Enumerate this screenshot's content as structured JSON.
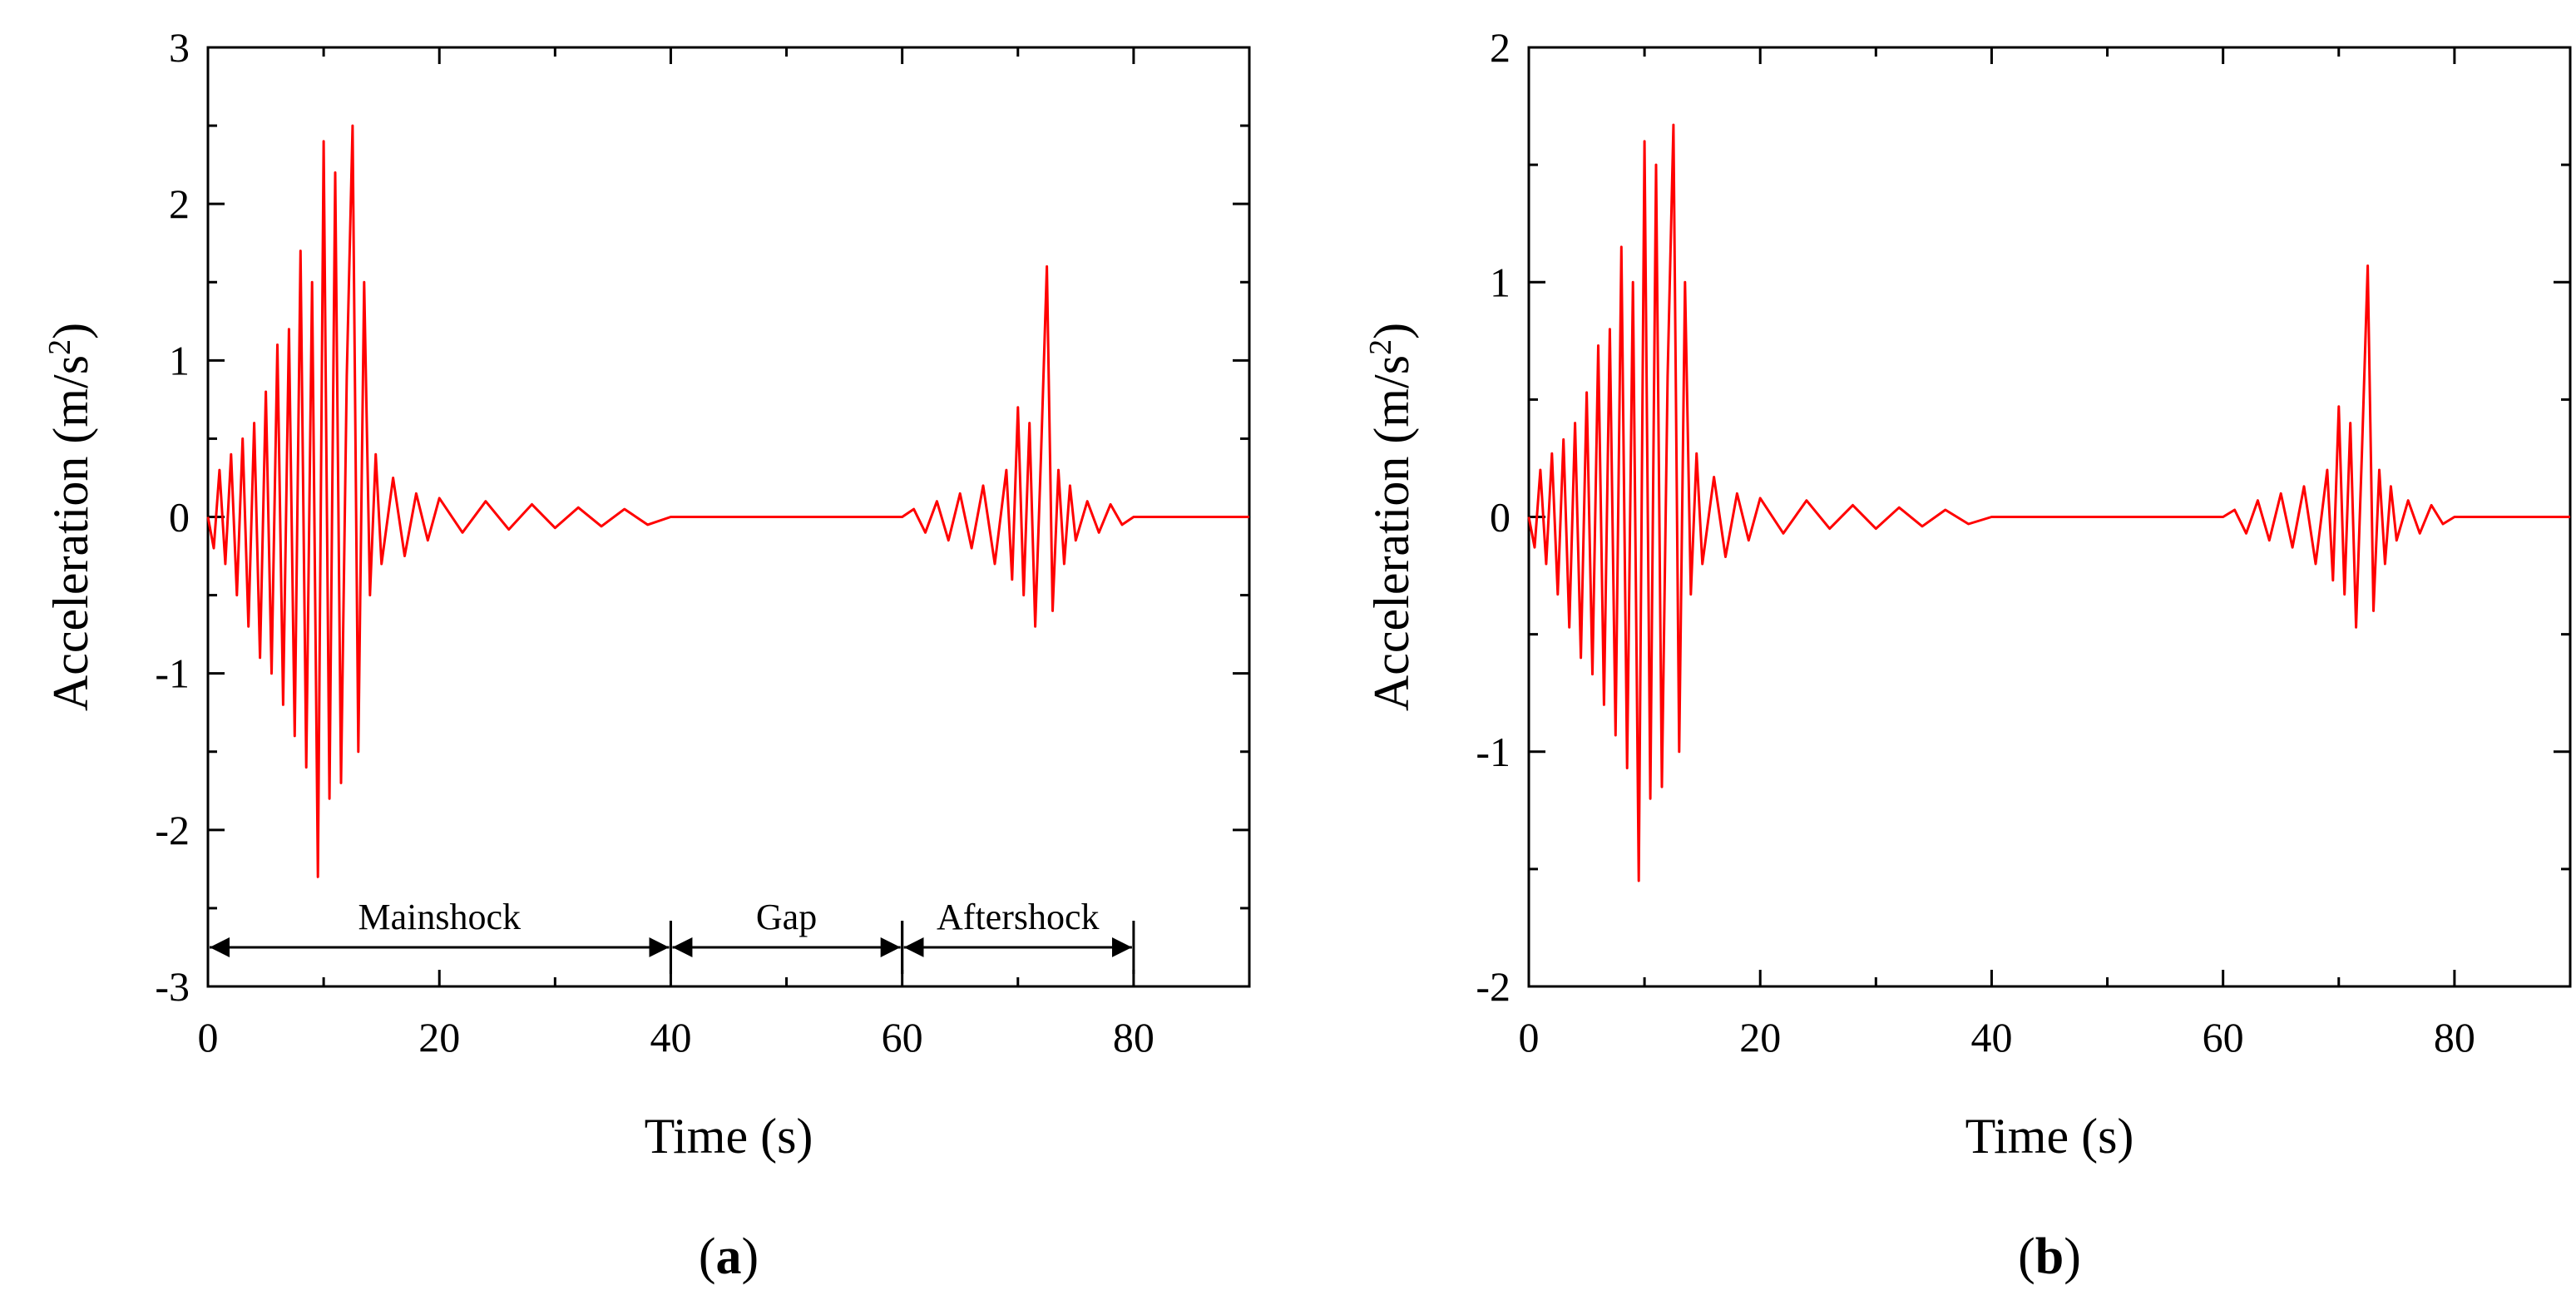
{
  "colors": {
    "signal": "#ff0000",
    "axis": "#000000",
    "background": "#ffffff"
  },
  "chart_data": [
    {
      "type": "line",
      "panel_label": "a",
      "xlabel": "Time (s)",
      "ylabel": "Acceleration (m/s",
      "ylabel_sup": "2",
      "ylabel_close": ")",
      "xlim": [
        0,
        90
      ],
      "ylim": [
        -3,
        3
      ],
      "xticks": [
        0,
        20,
        40,
        60,
        80
      ],
      "yticks": [
        -3,
        -2,
        -1,
        0,
        1,
        2,
        3
      ],
      "grid": false,
      "series": [
        {
          "name": "acceleration",
          "x": [
            0,
            0.5,
            1,
            1.5,
            2,
            2.5,
            3,
            3.5,
            4,
            4.5,
            5,
            5.5,
            6,
            6.5,
            7,
            7.5,
            8,
            8.5,
            9,
            9.5,
            10,
            10.5,
            11,
            11.5,
            12,
            12.5,
            13,
            13.5,
            14,
            14.5,
            15,
            16,
            17,
            18,
            19,
            20,
            22,
            24,
            26,
            28,
            30,
            32,
            34,
            36,
            38,
            40,
            45,
            50,
            55,
            60,
            61,
            62,
            63,
            64,
            65,
            66,
            67,
            68,
            69,
            69.5,
            70,
            70.5,
            71,
            71.5,
            72,
            72.5,
            73,
            73.5,
            74,
            74.5,
            75,
            76,
            77,
            78,
            79,
            80,
            85,
            90
          ],
          "y": [
            0,
            -0.2,
            0.3,
            -0.3,
            0.4,
            -0.5,
            0.5,
            -0.7,
            0.6,
            -0.9,
            0.8,
            -1.0,
            1.1,
            -1.2,
            1.2,
            -1.4,
            1.7,
            -1.6,
            1.5,
            -2.3,
            2.4,
            -1.8,
            2.2,
            -1.7,
            0.9,
            2.5,
            -1.5,
            1.5,
            -0.5,
            0.4,
            -0.3,
            0.25,
            -0.25,
            0.15,
            -0.15,
            0.12,
            -0.1,
            0.1,
            -0.08,
            0.08,
            -0.07,
            0.06,
            -0.06,
            0.05,
            -0.05,
            0,
            0,
            0,
            0,
            0,
            0.05,
            -0.1,
            0.1,
            -0.15,
            0.15,
            -0.2,
            0.2,
            -0.3,
            0.3,
            -0.4,
            0.7,
            -0.5,
            0.6,
            -0.7,
            0.4,
            1.6,
            -0.6,
            0.3,
            -0.3,
            0.2,
            -0.15,
            0.1,
            -0.1,
            0.08,
            -0.05,
            0,
            0,
            0
          ]
        }
      ],
      "annotations": {
        "phases": [
          {
            "label": "Mainshock",
            "start": 0,
            "end": 40
          },
          {
            "label": "Gap",
            "start": 40,
            "end": 60
          },
          {
            "label": "Aftershock",
            "start": 60,
            "end": 80
          }
        ],
        "arrow_y": -2.75
      }
    },
    {
      "type": "line",
      "panel_label": "b",
      "xlabel": "Time (s)",
      "ylabel": "Acceleration (m/s",
      "ylabel_sup": "2",
      "ylabel_close": ")",
      "xlim": [
        0,
        90
      ],
      "ylim": [
        -2,
        2
      ],
      "xticks": [
        0,
        20,
        40,
        60,
        80
      ],
      "yticks": [
        -2,
        -1,
        0,
        1,
        2
      ],
      "grid": false,
      "series": [
        {
          "name": "acceleration",
          "x": [
            0,
            0.5,
            1,
            1.5,
            2,
            2.5,
            3,
            3.5,
            4,
            4.5,
            5,
            5.5,
            6,
            6.5,
            7,
            7.5,
            8,
            8.5,
            9,
            9.5,
            10,
            10.5,
            11,
            11.5,
            12,
            12.5,
            13,
            13.5,
            14,
            14.5,
            15,
            16,
            17,
            18,
            19,
            20,
            22,
            24,
            26,
            28,
            30,
            32,
            34,
            36,
            38,
            40,
            45,
            50,
            55,
            60,
            61,
            62,
            63,
            64,
            65,
            66,
            67,
            68,
            69,
            69.5,
            70,
            70.5,
            71,
            71.5,
            72,
            72.5,
            73,
            73.5,
            74,
            74.5,
            75,
            76,
            77,
            78,
            79,
            80,
            85,
            90
          ],
          "y": [
            0,
            -0.13,
            0.2,
            -0.2,
            0.27,
            -0.33,
            0.33,
            -0.47,
            0.4,
            -0.6,
            0.53,
            -0.67,
            0.73,
            -0.8,
            0.8,
            -0.93,
            1.15,
            -1.07,
            1.0,
            -1.55,
            1.6,
            -1.2,
            1.5,
            -1.15,
            0.6,
            1.67,
            -1.0,
            1.0,
            -0.33,
            0.27,
            -0.2,
            0.17,
            -0.17,
            0.1,
            -0.1,
            0.08,
            -0.07,
            0.07,
            -0.05,
            0.05,
            -0.05,
            0.04,
            -0.04,
            0.03,
            -0.03,
            0,
            0,
            0,
            0,
            0,
            0.03,
            -0.07,
            0.07,
            -0.1,
            0.1,
            -0.13,
            0.13,
            -0.2,
            0.2,
            -0.27,
            0.47,
            -0.33,
            0.4,
            -0.47,
            0.27,
            1.07,
            -0.4,
            0.2,
            -0.2,
            0.13,
            -0.1,
            0.07,
            -0.07,
            0.05,
            -0.03,
            0,
            0,
            0
          ]
        }
      ]
    }
  ]
}
